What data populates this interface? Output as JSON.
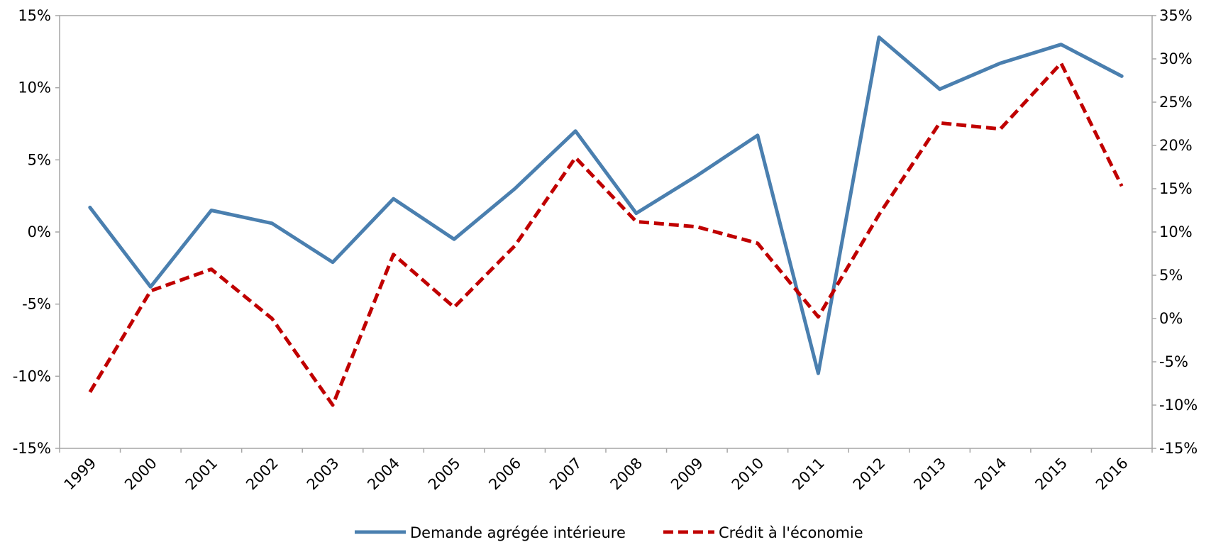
{
  "chart_data": {
    "type": "line",
    "title": "",
    "categories": [
      "1999",
      "2000",
      "2001",
      "2002",
      "2003",
      "2004",
      "2005",
      "2006",
      "2007",
      "2008",
      "2009",
      "2010",
      "2011",
      "2012",
      "2013",
      "2014",
      "2015",
      "2016"
    ],
    "series": [
      {
        "name": "Demande agrégée intérieure",
        "axis": "left",
        "color": "#4A7FAF",
        "dash": "solid",
        "values": [
          1.7,
          -3.8,
          1.5,
          0.6,
          -2.1,
          2.3,
          -0.5,
          3.0,
          7.0,
          1.3,
          3.9,
          6.7,
          -9.8,
          13.5,
          9.9,
          11.7,
          13.0,
          10.8
        ]
      },
      {
        "name": "Crédit à l'économie",
        "axis": "right",
        "color": "#C00000",
        "dash": "dashed",
        "values": [
          -8.5,
          3.2,
          5.7,
          0.0,
          -10.0,
          7.4,
          1.3,
          8.4,
          18.6,
          11.2,
          10.6,
          8.7,
          0.2,
          12.0,
          22.6,
          21.9,
          29.5,
          15.3
        ]
      }
    ],
    "y_left": {
      "min": -15,
      "max": 15,
      "step": 5,
      "ticks": [
        "-15%",
        "-10%",
        "-5%",
        "0%",
        "5%",
        "10%",
        "15%"
      ]
    },
    "y_right": {
      "min": -15,
      "max": 35,
      "step": 5,
      "ticks": [
        "-15%",
        "-10%",
        "-5%",
        "0%",
        "5%",
        "10%",
        "15%",
        "20%",
        "25%",
        "30%",
        "35%"
      ]
    },
    "legend_position": "bottom-center",
    "grid": false
  }
}
